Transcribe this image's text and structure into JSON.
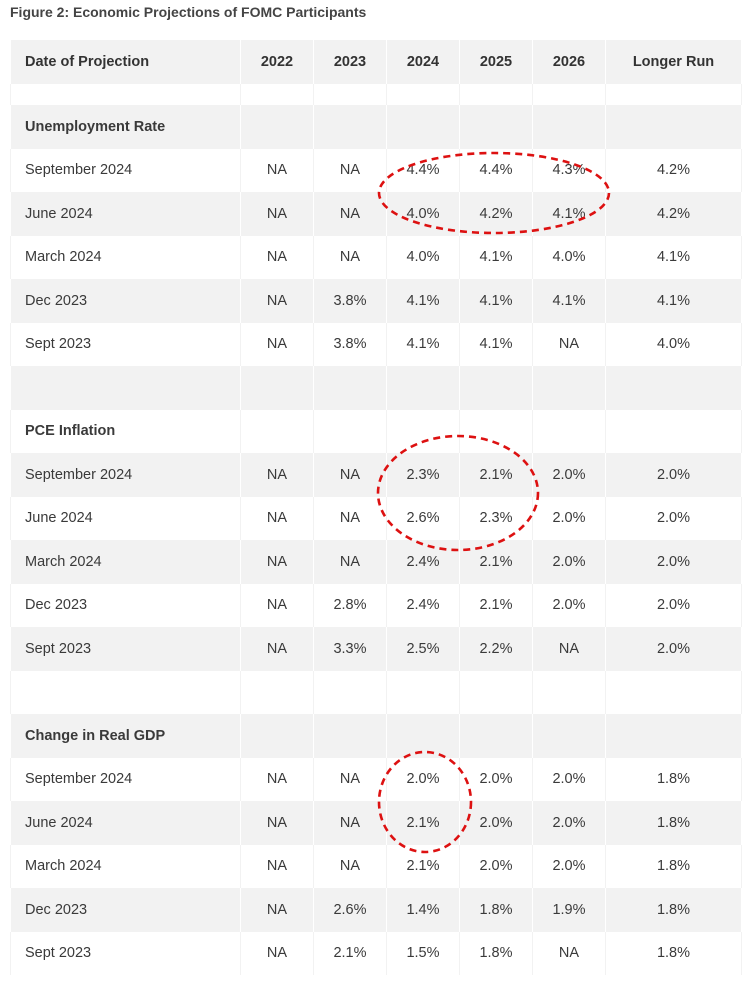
{
  "caption": "Figure 2: Economic Projections of FOMC Participants",
  "columns": [
    "Date of Projection",
    "2022",
    "2023",
    "2024",
    "2025",
    "2026",
    "Longer Run"
  ],
  "sections": [
    {
      "title": "Unemployment Rate",
      "rows": [
        {
          "label": "September 2024",
          "values": [
            "NA",
            "NA",
            "4.4%",
            "4.4%",
            "4.3%",
            "4.2%"
          ]
        },
        {
          "label": "June 2024",
          "values": [
            "NA",
            "NA",
            "4.0%",
            "4.2%",
            "4.1%",
            "4.2%"
          ]
        },
        {
          "label": "March 2024",
          "values": [
            "NA",
            "NA",
            "4.0%",
            "4.1%",
            "4.0%",
            "4.1%"
          ]
        },
        {
          "label": "Dec 2023",
          "values": [
            "NA",
            "3.8%",
            "4.1%",
            "4.1%",
            "4.1%",
            "4.1%"
          ]
        },
        {
          "label": "Sept 2023",
          "values": [
            "NA",
            "3.8%",
            "4.1%",
            "4.1%",
            "NA",
            "4.0%"
          ]
        }
      ]
    },
    {
      "title": "PCE Inflation",
      "rows": [
        {
          "label": "September 2024",
          "values": [
            "NA",
            "NA",
            "2.3%",
            "2.1%",
            "2.0%",
            "2.0%"
          ]
        },
        {
          "label": "June 2024",
          "values": [
            "NA",
            "NA",
            "2.6%",
            "2.3%",
            "2.0%",
            "2.0%"
          ]
        },
        {
          "label": "March 2024",
          "values": [
            "NA",
            "NA",
            "2.4%",
            "2.1%",
            "2.0%",
            "2.0%"
          ]
        },
        {
          "label": "Dec 2023",
          "values": [
            "NA",
            "2.8%",
            "2.4%",
            "2.1%",
            "2.0%",
            "2.0%"
          ]
        },
        {
          "label": "Sept 2023",
          "values": [
            "NA",
            "3.3%",
            "2.5%",
            "2.2%",
            "NA",
            "2.0%"
          ]
        }
      ]
    },
    {
      "title": "Change in Real GDP",
      "rows": [
        {
          "label": "September 2024",
          "values": [
            "NA",
            "NA",
            "2.0%",
            "2.0%",
            "2.0%",
            "1.8%"
          ]
        },
        {
          "label": "June 2024",
          "values": [
            "NA",
            "NA",
            "2.1%",
            "2.0%",
            "2.0%",
            "1.8%"
          ]
        },
        {
          "label": "March 2024",
          "values": [
            "NA",
            "NA",
            "2.1%",
            "2.0%",
            "2.0%",
            "1.8%"
          ]
        },
        {
          "label": "Dec 2023",
          "values": [
            "NA",
            "2.6%",
            "1.4%",
            "1.8%",
            "1.9%",
            "1.8%"
          ]
        },
        {
          "label": "Sept 2023",
          "values": [
            "NA",
            "2.1%",
            "1.5%",
            "1.8%",
            "NA",
            "1.8%"
          ]
        }
      ]
    }
  ],
  "colors": {
    "row_gray": "#f2f2f2",
    "annotation": "#dd1111"
  }
}
